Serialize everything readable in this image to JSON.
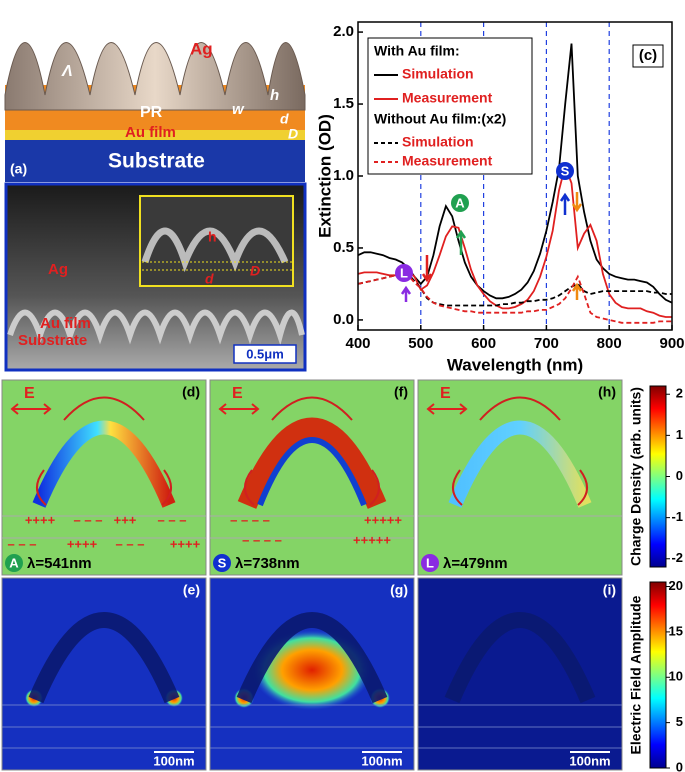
{
  "panel_a": {
    "label": "(a)",
    "lambda": "Λ",
    "ag": "Ag",
    "pr": "PR",
    "w": "w",
    "h": "h",
    "d": "d",
    "D": "D",
    "au_film": "Au film",
    "substrate": "Substrate"
  },
  "panel_a_sem": {
    "ag": "Ag",
    "au_film": "Au film",
    "substrate": "Substrate",
    "scale_bar": "0.5μm",
    "inset_h": "h",
    "inset_D": "D",
    "inset_d": "d"
  },
  "chart_data": {
    "type": "line",
    "panel_label": "(c)",
    "x_label": "Wavelength (nm)",
    "y_label": "Extinction (OD)",
    "xlim": [
      400,
      900
    ],
    "xticks": [
      400,
      500,
      600,
      700,
      800,
      900
    ],
    "ylim": [
      -0.07,
      2.07
    ],
    "yticks": [
      {
        "value": 0,
        "label": "0.0"
      },
      0.5,
      {
        "value": 1,
        "label": "1.0"
      },
      1.5,
      {
        "value": 2,
        "label": "2.0"
      }
    ],
    "reference_lines": [
      500,
      600,
      700,
      800
    ],
    "reference_color": "#2040e0",
    "legend_headings": [
      "With Au film:",
      "Without Au film:(x2)"
    ],
    "x": [
      400,
      410,
      420,
      430,
      440,
      450,
      460,
      470,
      480,
      490,
      500,
      510,
      520,
      530,
      540,
      550,
      560,
      570,
      580,
      590,
      600,
      610,
      620,
      630,
      640,
      650,
      660,
      670,
      680,
      690,
      700,
      710,
      720,
      730,
      740,
      750,
      760,
      770,
      780,
      790,
      800,
      810,
      820,
      830,
      840,
      850,
      860,
      870,
      880,
      890,
      900
    ],
    "series": [
      {
        "name": "Simulation",
        "color": "#000000",
        "dashed": false,
        "values": [
          0.45,
          0.47,
          0.47,
          0.46,
          0.45,
          0.43,
          0.42,
          0.4,
          0.36,
          0.3,
          0.25,
          0.3,
          0.45,
          0.65,
          0.79,
          0.72,
          0.55,
          0.4,
          0.3,
          0.24,
          0.2,
          0.17,
          0.15,
          0.15,
          0.16,
          0.18,
          0.21,
          0.26,
          0.34,
          0.46,
          0.62,
          0.82,
          1.05,
          1.5,
          1.92,
          1.0,
          0.75,
          0.55,
          0.42,
          0.36,
          0.32,
          0.3,
          0.29,
          0.28,
          0.28,
          0.27,
          0.26,
          0.23,
          0.18,
          0.14,
          0.12
        ]
      },
      {
        "name": "Measurement",
        "color": "#e02020",
        "dashed": false,
        "values": [
          0.32,
          0.33,
          0.33,
          0.33,
          0.32,
          0.31,
          0.31,
          0.33,
          0.34,
          0.3,
          0.21,
          0.24,
          0.33,
          0.45,
          0.58,
          0.65,
          0.64,
          0.5,
          0.35,
          0.24,
          0.18,
          0.13,
          0.1,
          0.08,
          0.08,
          0.09,
          0.11,
          0.14,
          0.2,
          0.3,
          0.44,
          0.62,
          0.9,
          1.07,
          0.95,
          0.5,
          0.6,
          0.66,
          0.55,
          0.32,
          0.18,
          0.12,
          0.09,
          0.08,
          0.08,
          0.08,
          0.06,
          0.05,
          0.03,
          0.02,
          0.02
        ]
      },
      {
        "name": "Simulation",
        "color": "#000000",
        "dashed": true,
        "values": [
          0.25,
          0.26,
          0.27,
          0.28,
          0.29,
          0.3,
          0.31,
          0.32,
          0.32,
          0.27,
          0.22,
          0.15,
          0.12,
          0.11,
          0.1,
          0.1,
          0.1,
          0.1,
          0.1,
          0.1,
          0.1,
          0.1,
          0.1,
          0.11,
          0.11,
          0.12,
          0.12,
          0.13,
          0.13,
          0.14,
          0.14,
          0.15,
          0.17,
          0.2,
          0.23,
          0.25,
          0.2,
          0.18,
          0.19,
          0.2,
          0.2,
          0.2,
          0.2,
          0.2,
          0.2,
          0.2,
          0.2,
          0.19,
          0.19,
          0.18,
          0.18
        ]
      },
      {
        "name": "Measurement",
        "color": "#e02020",
        "dashed": true,
        "values": [
          0.25,
          0.26,
          0.27,
          0.28,
          0.29,
          0.3,
          0.31,
          0.33,
          0.31,
          0.26,
          0.22,
          0.16,
          0.12,
          0.1,
          0.09,
          0.08,
          0.07,
          0.06,
          0.06,
          0.05,
          0.05,
          0.05,
          0.05,
          0.05,
          0.05,
          0.05,
          0.05,
          0.06,
          0.06,
          0.07,
          0.07,
          0.09,
          0.11,
          0.15,
          0.22,
          0.3,
          0.18,
          0.05,
          0.02,
          0.01,
          0,
          -0.01,
          -0.02,
          -0.02,
          -0.02,
          -0.02,
          -0.02,
          -0.02,
          -0.01,
          -0.01,
          -0.01
        ]
      }
    ],
    "markers": [
      {
        "label": "L",
        "color": "#8a2be2"
      },
      {
        "label": "A",
        "color": "#20a050"
      },
      {
        "label": "S",
        "color": "#1030d0"
      }
    ]
  },
  "charge_maps": {
    "colorbar_label": "Charge Density (arb. units)",
    "colorbar_lim": [
      -2.2,
      2.2
    ],
    "colorbar_ticks": [
      2,
      1,
      0,
      -1,
      -2
    ],
    "panels": [
      {
        "label": "(d)",
        "field": "E",
        "marker": "A",
        "wavelength": "λ=541nm",
        "charges": [
          "++++",
          "– – –",
          "+++",
          "– – –",
          "– – –",
          "++++",
          "– – –",
          "++++"
        ]
      },
      {
        "label": "(f)",
        "field": "E",
        "marker": "S",
        "wavelength": "λ=738nm",
        "charges": [
          "– – – –",
          "+++++",
          "– – – –",
          "+++++"
        ]
      },
      {
        "label": "(h)",
        "field": "E",
        "marker": "L",
        "wavelength": "λ=479nm",
        "charges": []
      }
    ]
  },
  "field_maps": {
    "colorbar_label": "Electric Field Amplitude",
    "colorbar_lim": [
      0,
      20.5
    ],
    "colorbar_ticks": [
      20,
      15,
      10,
      5,
      0
    ],
    "panels": [
      {
        "label": "(e)",
        "scale_bar": "100nm"
      },
      {
        "label": "(g)",
        "scale_bar": "100nm"
      },
      {
        "label": "(i)",
        "scale_bar": "100nm"
      }
    ]
  }
}
